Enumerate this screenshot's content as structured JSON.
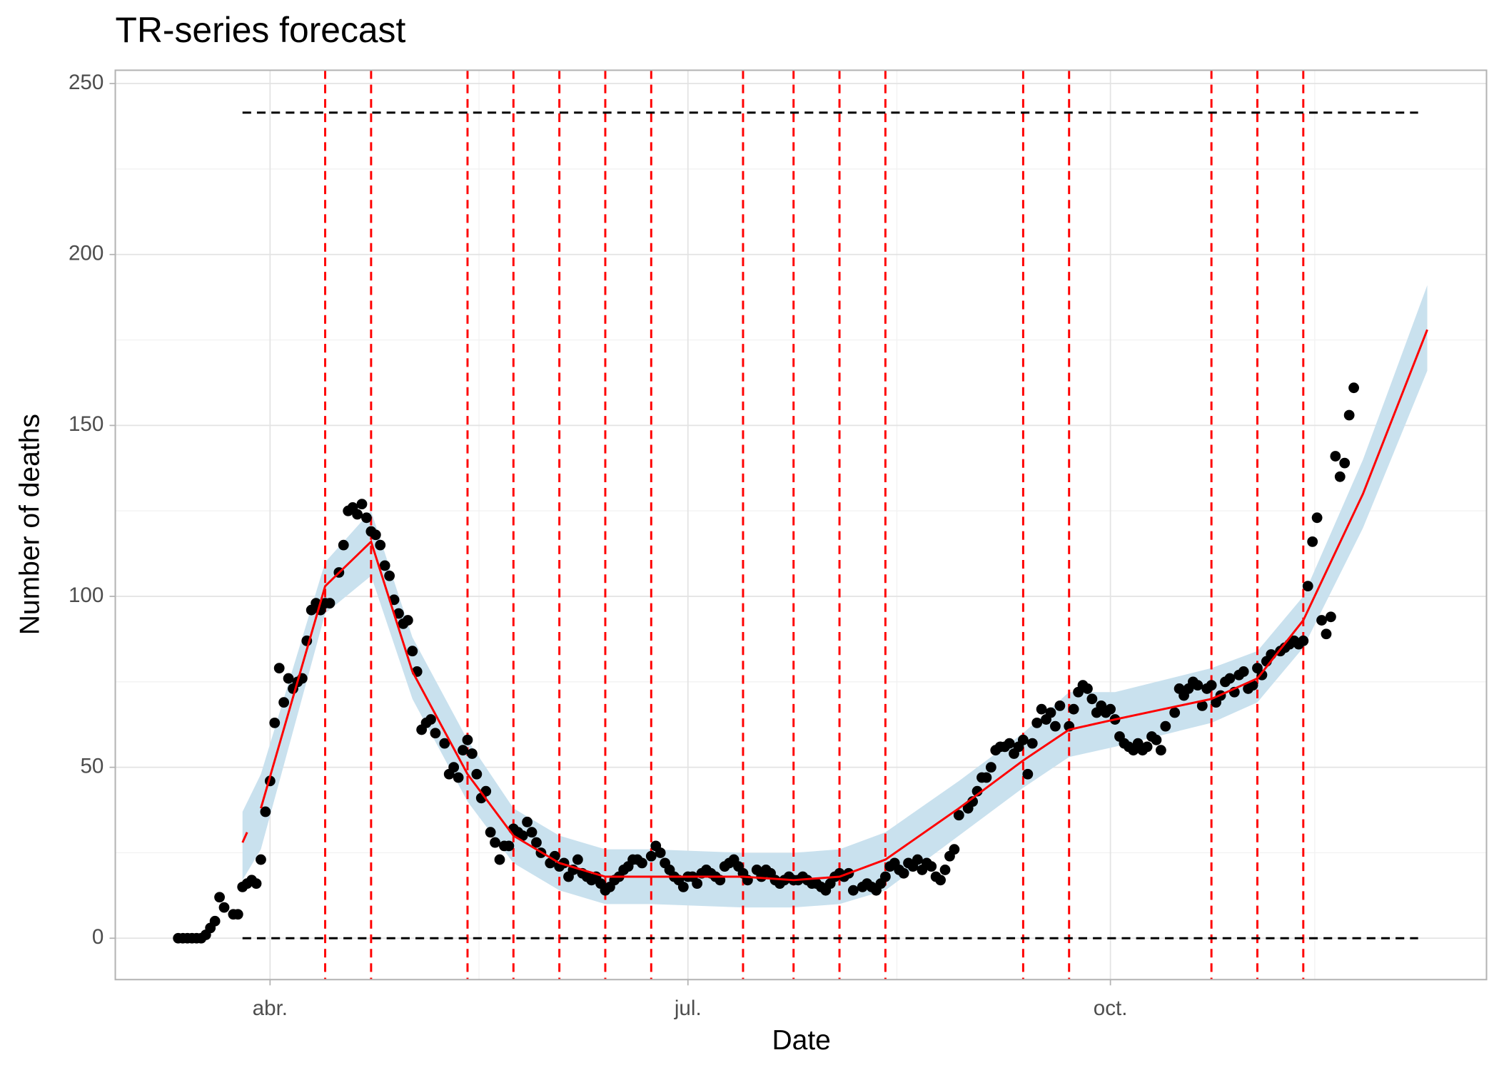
{
  "chart_data": {
    "type": "scatter",
    "title": "TR-series forecast",
    "x_label": "Date",
    "y_label": "Number of deaths",
    "xlim": [
      58.3,
      356.9
    ],
    "ylim": [
      -12.1,
      253.9
    ],
    "xticks": [
      {
        "value": 92,
        "label": "abr."
      },
      {
        "value": 183,
        "label": "jul."
      },
      {
        "value": 275,
        "label": "oct."
      }
    ],
    "yticks": [
      0,
      50,
      100,
      150,
      200,
      250
    ],
    "grid": true,
    "minor_grid": true,
    "series": [
      {
        "type": "band",
        "color": "#c9e1ee",
        "x": [
          86,
          90,
          104,
          114,
          123,
          135,
          145,
          155,
          165,
          175,
          195,
          206,
          216,
          226,
          242,
          256,
          266,
          276,
          297,
          307,
          317,
          330,
          344
        ],
        "lower": [
          17,
          26,
          95,
          106,
          70,
          40,
          22,
          14,
          10,
          10,
          9,
          9,
          10,
          14,
          30,
          44,
          53,
          56,
          63,
          69,
          85,
          120,
          166
        ],
        "upper": [
          37,
          48,
          110,
          125,
          88,
          58,
          38,
          30,
          26,
          26,
          25,
          25,
          26,
          31,
          46,
          60,
          72,
          72,
          79,
          84,
          100,
          140,
          191
        ]
      },
      {
        "type": "scatter",
        "color": "#000000",
        "x": [
          72,
          73,
          74,
          75,
          76,
          77,
          78,
          79,
          80,
          81,
          82,
          84,
          85,
          86,
          87,
          88,
          89,
          90,
          91,
          92,
          93,
          94,
          95,
          96,
          97,
          98,
          99,
          100,
          101,
          102,
          103,
          104,
          105,
          107,
          108,
          109,
          110,
          111,
          112,
          113,
          114,
          115,
          116,
          117,
          118,
          119,
          120,
          121,
          122,
          123,
          124,
          125,
          126,
          127,
          128,
          130,
          131,
          132,
          133,
          134,
          135,
          136,
          137,
          138,
          139,
          140,
          141,
          142,
          143,
          144,
          145,
          146,
          147,
          148,
          149,
          150,
          151,
          153,
          154,
          155,
          156,
          157,
          158,
          159,
          160,
          161,
          162,
          163,
          164,
          165,
          166,
          167,
          168,
          169,
          170,
          171,
          172,
          173,
          175,
          176,
          177,
          178,
          179,
          180,
          181,
          182,
          183,
          184,
          185,
          186,
          187,
          188,
          189,
          190,
          191,
          192,
          193,
          194,
          195,
          196,
          198,
          199,
          200,
          201,
          202,
          203,
          204,
          205,
          206,
          207,
          208,
          209,
          210,
          211,
          212,
          213,
          214,
          215,
          216,
          217,
          218,
          219,
          221,
          222,
          223,
          224,
          225,
          226,
          227,
          228,
          229,
          230,
          231,
          232,
          233,
          234,
          235,
          236,
          237,
          238,
          239,
          240,
          241,
          242,
          244,
          245,
          246,
          247,
          248,
          249,
          250,
          251,
          252,
          253,
          254,
          255,
          256,
          257,
          258,
          259,
          260,
          261,
          262,
          263,
          264,
          266,
          267,
          268,
          269,
          270,
          271,
          272,
          273,
          274,
          275,
          276,
          277,
          278,
          279,
          280,
          281,
          282,
          283,
          284,
          285,
          286,
          287,
          289,
          290,
          291,
          292,
          293,
          294,
          295,
          296,
          297,
          298,
          299,
          300,
          301,
          302,
          303,
          304,
          305,
          306,
          307,
          308,
          309,
          310,
          312,
          313,
          314,
          315,
          316,
          317,
          318,
          319,
          320,
          321,
          322,
          323,
          324,
          325,
          326,
          327,
          328
        ],
        "values": [
          0,
          0,
          0,
          0,
          0,
          0,
          1,
          3,
          5,
          12,
          9,
          7,
          7,
          15,
          16,
          17,
          16,
          23,
          37,
          46,
          63,
          79,
          69,
          76,
          73,
          75,
          76,
          87,
          96,
          98,
          96,
          98,
          98,
          107,
          115,
          125,
          126,
          124,
          127,
          123,
          119,
          118,
          115,
          109,
          106,
          99,
          95,
          92,
          93,
          84,
          78,
          61,
          63,
          64,
          60,
          57,
          48,
          50,
          47,
          55,
          58,
          54,
          48,
          41,
          43,
          31,
          28,
          23,
          27,
          27,
          32,
          31,
          30,
          34,
          31,
          28,
          25,
          22,
          24,
          21,
          22,
          18,
          20,
          23,
          19,
          18,
          17,
          18,
          16,
          14,
          15,
          17,
          18,
          20,
          21,
          23,
          23,
          22,
          24,
          27,
          25,
          22,
          20,
          18,
          17,
          15,
          18,
          18,
          16,
          19,
          20,
          19,
          18,
          17,
          21,
          22,
          23,
          21,
          19,
          17,
          20,
          18,
          20,
          19,
          17,
          16,
          17,
          18,
          17,
          17,
          18,
          17,
          16,
          16,
          15,
          14,
          16,
          18,
          19,
          18,
          19,
          14,
          15,
          16,
          15,
          14,
          16,
          18,
          21,
          22,
          20,
          19,
          22,
          21,
          23,
          20,
          22,
          21,
          18,
          17,
          20,
          24,
          26,
          36,
          38,
          40,
          43,
          47,
          47,
          50,
          55,
          56,
          56,
          57,
          54,
          56,
          58,
          48,
          57,
          63,
          67,
          64,
          66,
          62,
          68,
          62,
          67,
          72,
          74,
          73,
          70,
          66,
          68,
          66,
          67,
          64,
          59,
          57,
          56,
          55,
          57,
          55,
          56,
          59,
          58,
          55,
          62,
          66,
          73,
          71,
          73,
          75,
          74,
          68,
          73,
          74,
          69,
          71,
          75,
          76,
          72,
          77,
          78,
          73,
          74,
          79,
          77,
          81,
          83,
          84,
          85,
          86,
          87,
          86,
          87,
          103,
          116,
          123,
          93,
          89,
          94,
          141,
          135,
          139,
          153,
          161
        ]
      },
      {
        "type": "line",
        "color": "#ff0000",
        "x": [
          86,
          87,
          89,
          90,
          104,
          114,
          123,
          135,
          145,
          155,
          165,
          175,
          195,
          206,
          216,
          226,
          242,
          256,
          266,
          276,
          297,
          307,
          317,
          330,
          344
        ],
        "values": [
          28,
          31,
          null,
          38,
          103,
          116,
          78,
          48,
          30,
          22,
          18,
          18,
          18,
          17,
          18,
          23,
          38,
          52,
          61,
          64,
          70,
          76,
          93,
          130,
          178
        ]
      }
    ],
    "vlines": {
      "color": "#ff0000",
      "x": [
        104,
        114,
        135,
        145,
        155,
        165,
        175,
        195,
        206,
        216,
        226,
        256,
        266,
        297,
        307,
        317
      ]
    },
    "hlines": {
      "color": "#000000",
      "values": [
        0,
        241.5
      ],
      "x": [
        86,
        342
      ]
    }
  }
}
